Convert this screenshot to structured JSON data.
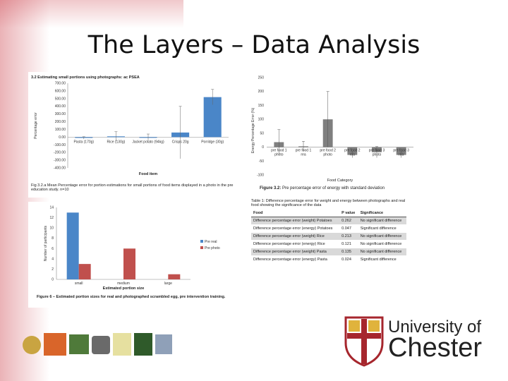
{
  "slide": {
    "title": "The Layers – Data Analysis",
    "accent_color": "#c42430"
  },
  "chart1_title": "3.2 Estimating small portions using photographs: ac PSEA",
  "chart1_caption": "Fig 3.2.a Mean Percentage error for portion estimations for small portions of food items displayed in a photo in the pre education study. n=10",
  "chart2_caption_bold": "Figure 3.2:",
  "chart2_caption_rest": "Pre percentage error of energy with standard deviation",
  "chart3_caption_bold": "Figure 6 – Estimated portion sizes for real and photographed scrambled egg, pre intervention training.",
  "table": {
    "caption": "Table 1: Difference percentage error for weight and energy between photographs and real food showing the significance of the data",
    "headers": [
      "Food",
      "P value",
      "Significance"
    ],
    "rows": [
      {
        "food": "Difference percentage error (weight) Potatoes",
        "p": "0.262",
        "sig": "No significant difference"
      },
      {
        "food": "Difference percentage error (energy) Potatoes",
        "p": "0.047",
        "sig": "Significant difference"
      },
      {
        "food": "Difference percentage error (weight) Rice",
        "p": "0.213",
        "sig": "No significant difference"
      },
      {
        "food": "Difference percentage error (energy) Rice",
        "p": "0.121",
        "sig": "No significant difference"
      },
      {
        "food": "Difference percentage error (weight) Pasta",
        "p": "0.135",
        "sig": "No significant difference"
      },
      {
        "food": "Difference percentage error (energy) Pasta",
        "p": "0.024",
        "sig": "Significant difference"
      }
    ]
  },
  "logo": {
    "line1": "University of",
    "line2": "Chester"
  },
  "chart_data": [
    {
      "type": "bar",
      "title": "3.2 Estimating small portions using photographs: ac PSEA",
      "xlabel": "Food item",
      "ylabel": "Percentage error",
      "categories": [
        "Pasta (170g)",
        "Rice (130g)",
        "Jacket potato (94kg)",
        "Crisps 20g",
        "Porridge (30g)"
      ],
      "series": [
        {
          "values": [
            -10,
            10,
            0,
            60,
            520
          ],
          "errors": [
            15,
            60,
            40,
            340,
            100
          ]
        }
      ],
      "ylim": [
        -400,
        700
      ],
      "yticks": [
        700,
        600,
        500,
        400,
        300,
        200,
        100,
        0,
        -100,
        -200,
        -300,
        -400
      ],
      "ytick_labels": [
        "700.00",
        "600.00",
        "500.00",
        "400.00",
        "300.00",
        "200.00",
        "100.00",
        "0.00",
        "-100.00",
        "-200.00",
        "-300.00",
        "-400.00"
      ],
      "color": "#4a86c8"
    },
    {
      "type": "bar",
      "xlabel": "Food Category",
      "ylabel": "Energy Percentage Error (%)",
      "categories": [
        "pre food 1 photo",
        "pre food 1 rea",
        "pre food 2 photo",
        "pre food 2 rea",
        "pre food 3 photo",
        "pre food 3 rea"
      ],
      "series": [
        {
          "values": [
            18,
            3,
            100,
            -28,
            -18,
            -28
          ],
          "errors": [
            45,
            18,
            100,
            10,
            20,
            10
          ]
        }
      ],
      "ylim": [
        -100,
        250
      ],
      "yticks": [
        250,
        200,
        150,
        100,
        50,
        0,
        -50,
        -100
      ],
      "color": "#7f7f7f"
    },
    {
      "type": "bar",
      "xlabel": "Estimated portion size",
      "ylabel": "Number of participants",
      "categories": [
        "small",
        "medium",
        "large"
      ],
      "series": [
        {
          "name": "Pre real",
          "values": [
            13,
            0,
            0
          ],
          "color": "#4a86c8"
        },
        {
          "name": "Pre photo",
          "values": [
            3,
            6,
            1
          ],
          "color": "#c0504d"
        }
      ],
      "ylim": [
        0,
        14
      ],
      "yticks": [
        14,
        12,
        10,
        8,
        6,
        4,
        2,
        0
      ]
    }
  ]
}
